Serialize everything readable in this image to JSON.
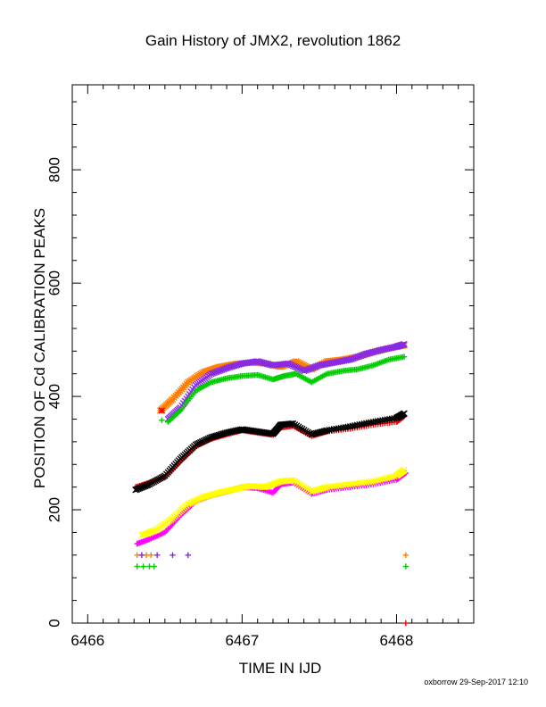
{
  "chart_data": {
    "type": "scatter",
    "title": "Gain History of JMX2, revolution 1862",
    "xlabel": "TIME IN IJD",
    "ylabel": "POSITION OF Cd CALIBRATION PEAKS",
    "xlim": [
      6465.9,
      6468.5
    ],
    "ylim": [
      0,
      950
    ],
    "xticks": [
      6466,
      6467,
      6468
    ],
    "yticks": [
      0,
      200,
      400,
      600,
      800
    ],
    "grid": false,
    "colors": {
      "black": "#000000",
      "red": "#ff0000",
      "yellow": "#ffff00",
      "magenta": "#ff00ff",
      "purple": "#8a2be2",
      "orange": "#ff7f00",
      "green": "#00cc00"
    },
    "series": [
      {
        "color": "red",
        "marker": "+",
        "x": [
          6466.31,
          6466.4,
          6466.5,
          6466.6,
          6466.7,
          6466.8,
          6466.9,
          6467.0,
          6467.1,
          6467.2,
          6467.25,
          6467.33,
          6467.45,
          6467.55,
          6467.7,
          6467.85,
          6468.0,
          6468.05
        ],
        "y": [
          240,
          248,
          258,
          285,
          312,
          325,
          333,
          340,
          336,
          332,
          345,
          348,
          330,
          338,
          343,
          350,
          355,
          365
        ]
      },
      {
        "color": "black",
        "marker": "x",
        "x": [
          6466.31,
          6466.4,
          6466.5,
          6466.6,
          6466.7,
          6466.8,
          6466.9,
          6467.0,
          6467.1,
          6467.2,
          6467.25,
          6467.33,
          6467.45,
          6467.55,
          6467.7,
          6467.85,
          6468.0,
          6468.05
        ],
        "y": [
          235,
          245,
          260,
          290,
          315,
          328,
          336,
          342,
          338,
          334,
          350,
          352,
          333,
          340,
          347,
          355,
          362,
          370
        ]
      },
      {
        "color": "magenta",
        "marker": "+",
        "x": [
          6466.32,
          6466.4,
          6466.5,
          6466.6,
          6466.7,
          6466.8,
          6466.9,
          6467.0,
          6467.1,
          6467.2,
          6467.25,
          6467.33,
          6467.45,
          6467.55,
          6467.7,
          6467.85,
          6468.0,
          6468.06
        ],
        "y": [
          140,
          148,
          160,
          190,
          215,
          225,
          232,
          240,
          238,
          230,
          245,
          248,
          228,
          235,
          240,
          245,
          253,
          265
        ]
      },
      {
        "color": "yellow",
        "marker": "x",
        "x": [
          6466.35,
          6466.45,
          6466.55,
          6466.65,
          6466.75,
          6466.85,
          6466.95,
          6467.05,
          6467.15,
          6467.25,
          6467.33,
          6467.45,
          6467.55,
          6467.7,
          6467.85,
          6468.0,
          6468.05
        ],
        "y": [
          155,
          165,
          185,
          210,
          222,
          230,
          236,
          242,
          240,
          250,
          252,
          232,
          240,
          245,
          250,
          260,
          270
        ]
      },
      {
        "color": "orange",
        "marker": "*",
        "x": [
          6466.47,
          6466.55,
          6466.65,
          6466.75,
          6466.85,
          6466.95,
          6467.05,
          6467.15,
          6467.25,
          6467.35,
          6467.45,
          6467.55,
          6467.65,
          6467.75,
          6467.85,
          6467.95,
          6468.05
        ],
        "y": [
          375,
          395,
          425,
          443,
          452,
          457,
          460,
          458,
          452,
          462,
          448,
          462,
          465,
          470,
          478,
          485,
          490
        ]
      },
      {
        "color": "purple",
        "marker": "x",
        "x": [
          6466.52,
          6466.6,
          6466.7,
          6466.8,
          6466.9,
          6467.0,
          6467.1,
          6467.2,
          6467.3,
          6467.4,
          6467.5,
          6467.6,
          6467.7,
          6467.8,
          6467.9,
          6468.0,
          6468.05
        ],
        "y": [
          360,
          380,
          420,
          440,
          450,
          458,
          462,
          455,
          458,
          445,
          455,
          460,
          465,
          475,
          482,
          488,
          492
        ]
      },
      {
        "color": "green",
        "marker": "+",
        "x": [
          6466.52,
          6466.6,
          6466.7,
          6466.8,
          6466.9,
          6467.0,
          6467.1,
          6467.2,
          6467.27,
          6467.35,
          6467.45,
          6467.55,
          6467.65,
          6467.75,
          6467.85,
          6467.95,
          6468.05
        ],
        "y": [
          355,
          375,
          410,
          425,
          432,
          436,
          438,
          430,
          436,
          440,
          425,
          440,
          445,
          448,
          455,
          465,
          470
        ]
      }
    ],
    "baseline_points": [
      {
        "color": "orange",
        "marker": "+",
        "x": [
          6466.32,
          6466.35,
          6466.38,
          6466.41
        ],
        "y": [
          120,
          120,
          120,
          120
        ]
      },
      {
        "color": "purple",
        "marker": "+",
        "x": [
          6466.35,
          6466.45,
          6466.55,
          6466.65
        ],
        "y": [
          120,
          120,
          120,
          120
        ]
      },
      {
        "color": "green",
        "marker": "+",
        "x": [
          6466.32,
          6466.36,
          6466.4,
          6466.43
        ],
        "y": [
          100,
          100,
          100,
          100
        ]
      },
      {
        "color": "red",
        "marker": "*",
        "x": [
          6466.48
        ],
        "y": [
          375
        ]
      },
      {
        "color": "green",
        "marker": "+",
        "x": [
          6466.48
        ],
        "y": [
          358
        ]
      },
      {
        "color": "orange",
        "marker": "+",
        "x": [
          6468.06
        ],
        "y": [
          120
        ]
      },
      {
        "color": "green",
        "marker": "+",
        "x": [
          6468.06
        ],
        "y": [
          100
        ]
      },
      {
        "color": "red",
        "marker": "+",
        "x": [
          6468.06
        ],
        "y": [
          0
        ]
      }
    ]
  },
  "footer": "oxborrow 29-Sep-2017 12:10"
}
